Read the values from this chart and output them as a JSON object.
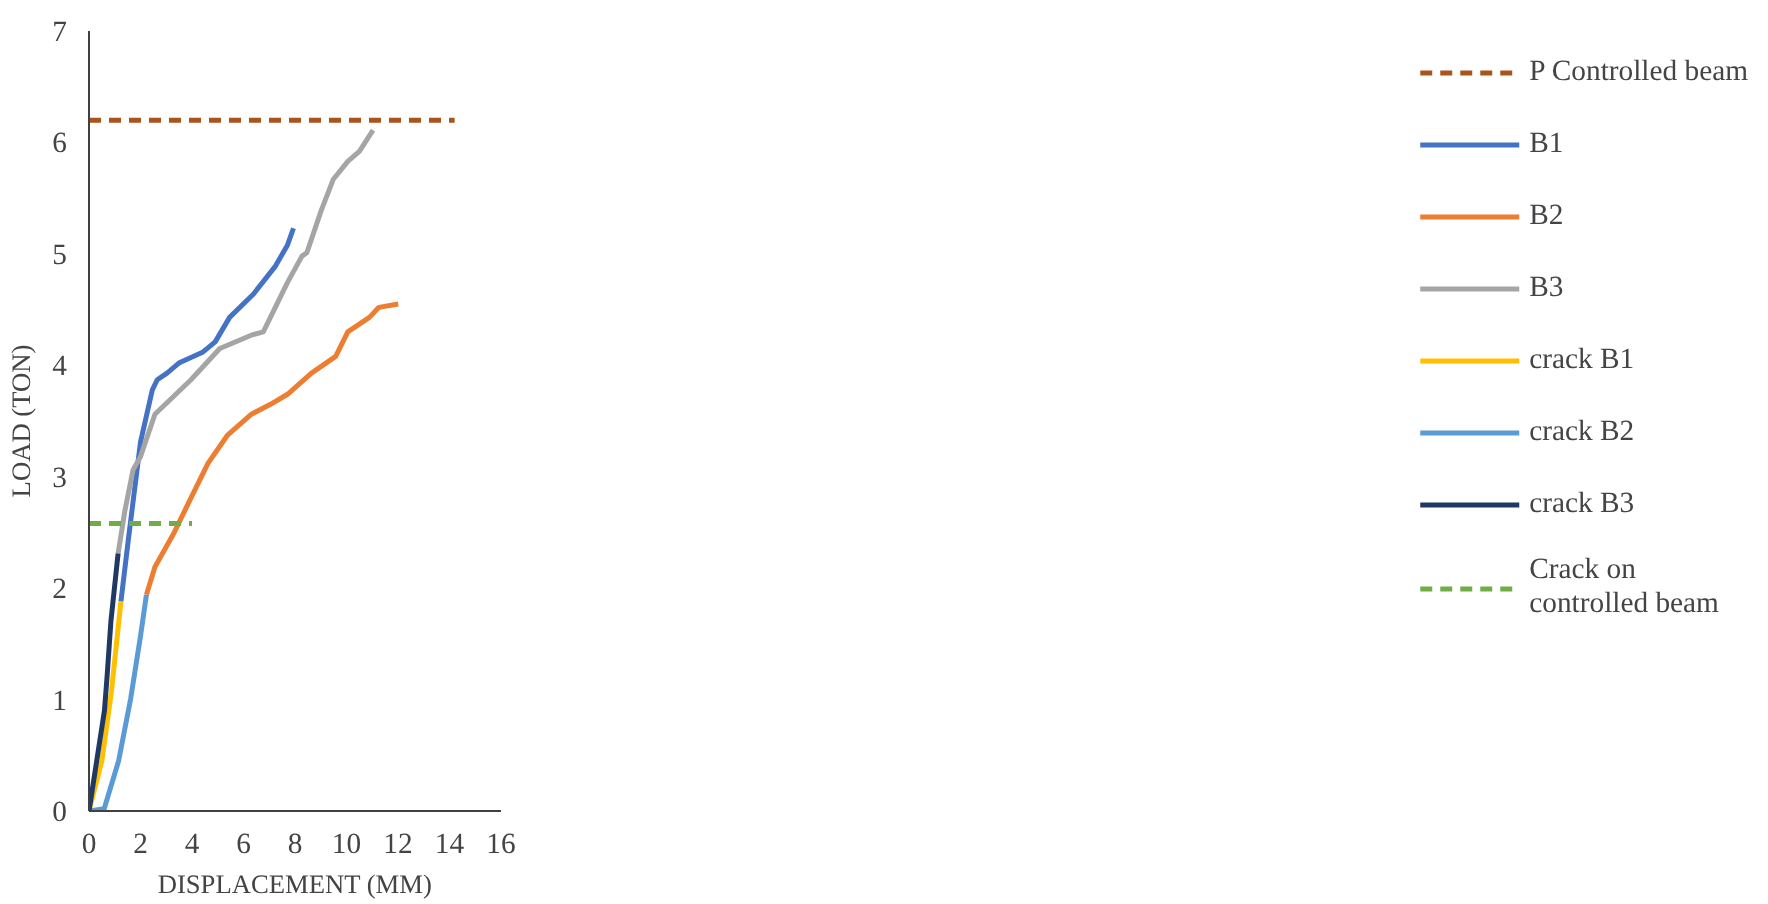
{
  "chart_data": {
    "type": "line",
    "xlabel": "DISPLACEMENT (MM)",
    "ylabel": "LOAD (TON)",
    "xlim": [
      0,
      16
    ],
    "ylim": [
      0,
      7
    ],
    "xticks": [
      0,
      2,
      4,
      6,
      8,
      10,
      12,
      14,
      16
    ],
    "yticks": [
      0,
      1,
      2,
      3,
      4,
      5,
      6,
      7
    ],
    "grid": false,
    "legend": "right",
    "marker": "none",
    "series": [
      {
        "name": "P Controlled beam",
        "color": "#a9541c",
        "line_style": "dashed",
        "x": [
          0,
          14.2
        ],
        "values": [
          6.2,
          6.2
        ]
      },
      {
        "name": "B1",
        "color": "#4472c4",
        "x": [
          1.24,
          1.53,
          2.0,
          2.46,
          2.65,
          3.03,
          3.49,
          4.43,
          4.9,
          5.46,
          6.39,
          7.24,
          7.71,
          7.94
        ],
        "values": [
          1.88,
          2.44,
          3.31,
          3.78,
          3.87,
          3.93,
          4.02,
          4.12,
          4.21,
          4.43,
          4.64,
          4.89,
          5.08,
          5.23
        ]
      },
      {
        "name": "B2",
        "color": "#ed7d31",
        "x": [
          2.23,
          2.56,
          3.31,
          3.96,
          4.62,
          5.37,
          6.3,
          7.05,
          7.71,
          8.64,
          9.58,
          10.05,
          10.89,
          11.26,
          12.01
        ],
        "values": [
          1.94,
          2.19,
          2.5,
          2.81,
          3.12,
          3.37,
          3.56,
          3.65,
          3.74,
          3.93,
          4.08,
          4.3,
          4.43,
          4.52,
          4.55
        ]
      },
      {
        "name": "B3",
        "color": "#a5a5a5",
        "x": [
          1.13,
          1.39,
          1.71,
          2.0,
          2.56,
          3.96,
          5.08,
          6.3,
          6.77,
          7.7,
          8.27,
          8.46,
          9.02,
          9.49,
          10.05,
          10.5,
          11.03
        ],
        "values": [
          2.31,
          2.69,
          3.06,
          3.18,
          3.56,
          3.87,
          4.15,
          4.27,
          4.3,
          4.74,
          4.98,
          5.01,
          5.39,
          5.67,
          5.83,
          5.92,
          6.11
        ]
      },
      {
        "name": "crack B1",
        "color": "#ffc000",
        "x": [
          0,
          0.5,
          0.87,
          1.24
        ],
        "values": [
          0,
          0.45,
          1.07,
          1.88
        ]
      },
      {
        "name": "crack B2",
        "color": "#5b9bd5",
        "x": [
          0,
          0.59,
          1.15,
          1.62,
          2.0,
          2.23
        ],
        "values": [
          0,
          0.02,
          0.45,
          1.01,
          1.57,
          1.94
        ]
      },
      {
        "name": "crack B3",
        "color": "#1f3864",
        "x": [
          0,
          0.3,
          0.6,
          0.7,
          0.85,
          1.13
        ],
        "values": [
          0,
          0.45,
          0.9,
          1.2,
          1.7,
          2.31
        ]
      },
      {
        "name": "Crack on\ncontrolled beam",
        "color": "#70ad47",
        "line_style": "dashed",
        "x": [
          0,
          4.0
        ],
        "values": [
          2.58,
          2.58
        ]
      }
    ]
  }
}
